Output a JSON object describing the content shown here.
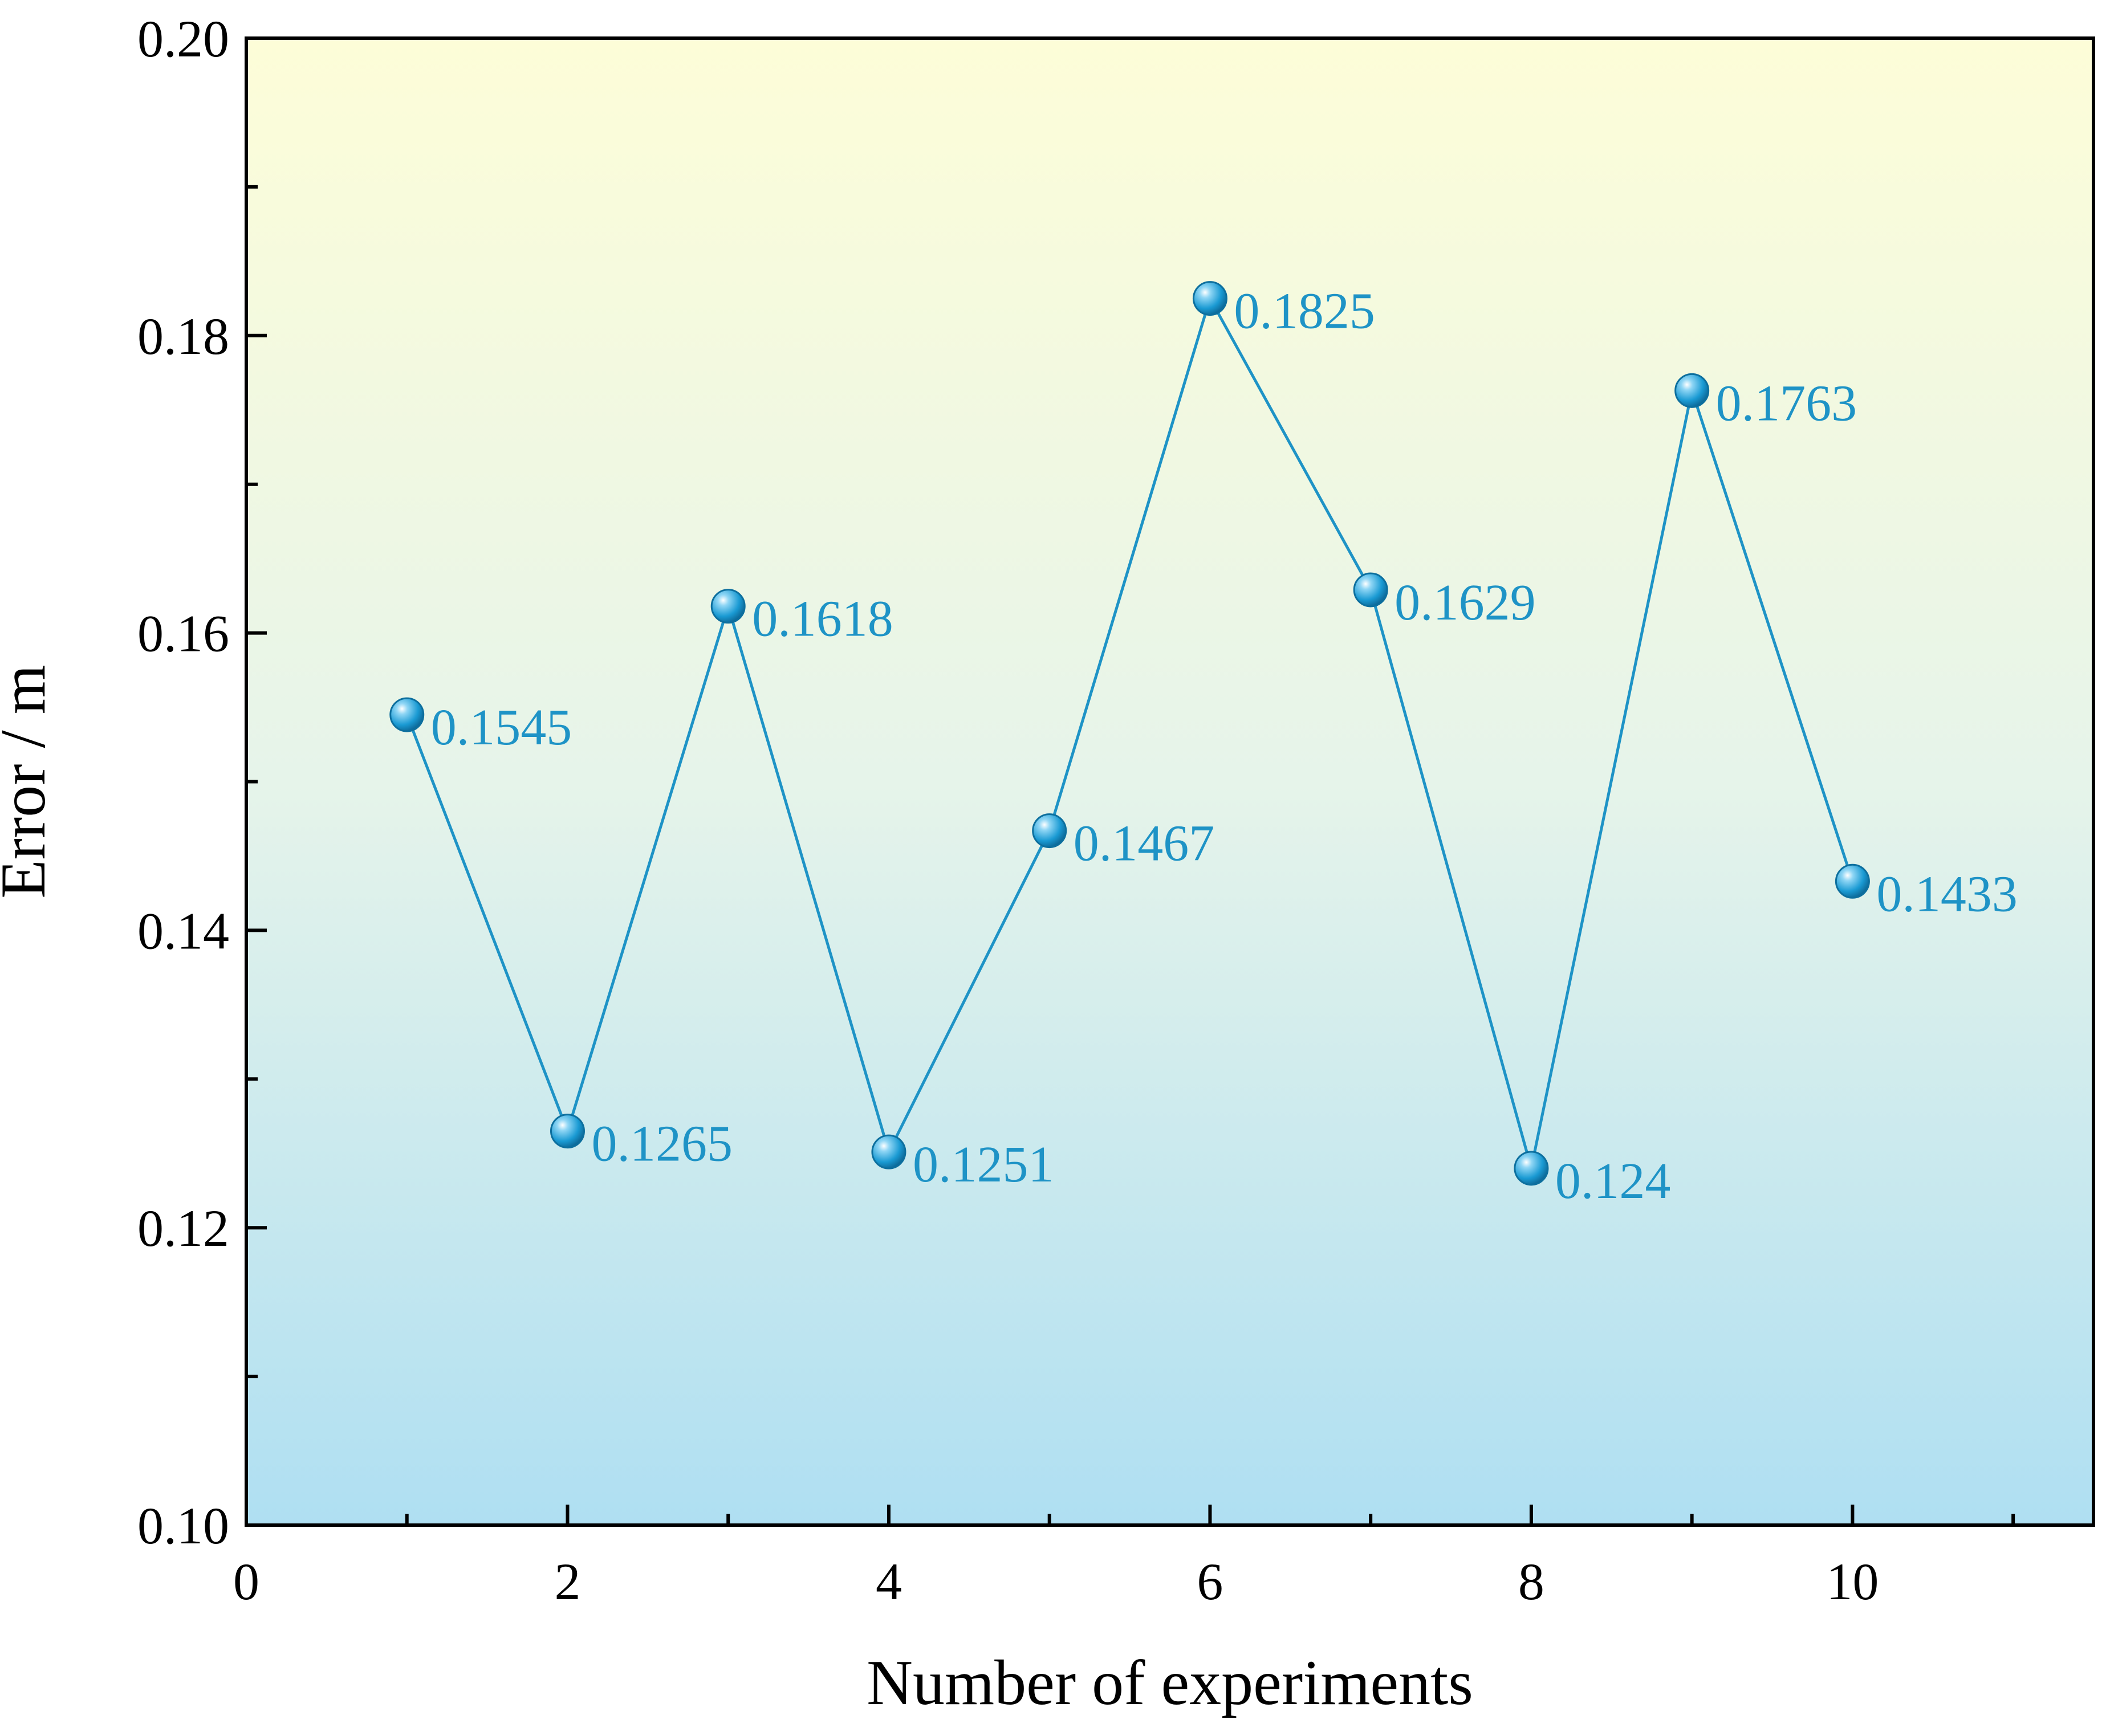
{
  "chart_data": {
    "type": "line",
    "xlabel": "Number of experiments",
    "ylabel": "Error / m",
    "xlim": [
      0,
      11.5
    ],
    "ylim": [
      0.1,
      0.2
    ],
    "xticks": [
      0,
      2,
      4,
      6,
      8,
      10
    ],
    "xtick_labels": [
      "0",
      "2",
      "4",
      "6",
      "8",
      "10"
    ],
    "x_minor_ticks": [
      1,
      3,
      5,
      7,
      9,
      11
    ],
    "yticks": [
      0.1,
      0.12,
      0.14,
      0.16,
      0.18,
      0.2
    ],
    "ytick_labels": [
      "0.10",
      "0.12",
      "0.14",
      "0.16",
      "0.18",
      "0.20"
    ],
    "y_minor_ticks": [
      0.11,
      0.13,
      0.15,
      0.17,
      0.19
    ],
    "grid": false,
    "background_gradient": {
      "top": "#fdfdd8",
      "middle": "#e6f4ea",
      "bottom": "#afdff2"
    },
    "series": [
      {
        "name": "Error",
        "color": "#1e93c6",
        "x": [
          1,
          2,
          3,
          4,
          5,
          6,
          7,
          8,
          9,
          10
        ],
        "y": [
          0.1545,
          0.1265,
          0.1618,
          0.1251,
          0.1467,
          0.1825,
          0.1629,
          0.124,
          0.1763,
          0.1433
        ],
        "labels": [
          "0.1545",
          "0.1265",
          "0.1618",
          "0.1251",
          "0.1467",
          "0.1825",
          "0.1629",
          "0.124",
          "0.1763",
          "0.1433"
        ]
      }
    ]
  }
}
